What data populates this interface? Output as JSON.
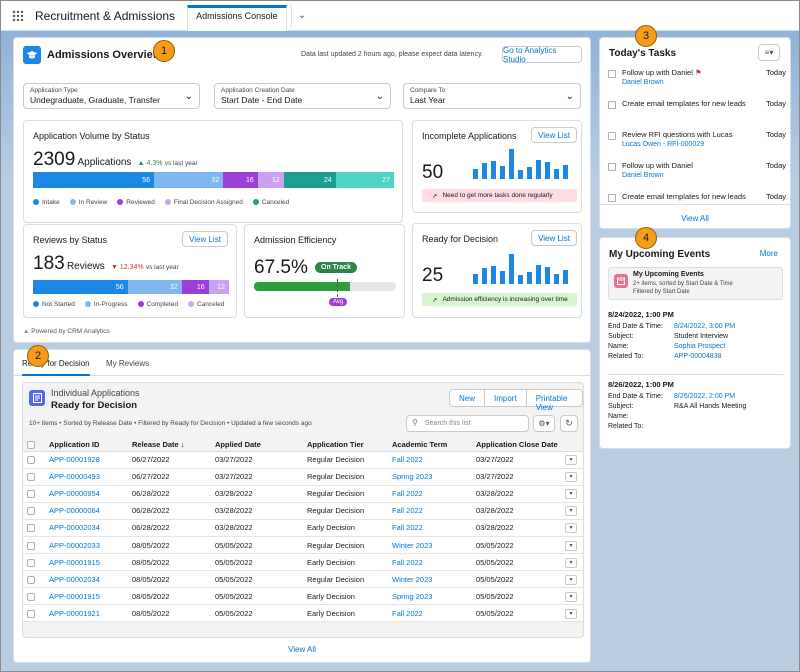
{
  "app": {
    "name": "Recruitment & Admissions",
    "tab": "Admissions Console"
  },
  "callouts": [
    "1",
    "2",
    "3",
    "4"
  ],
  "overview": {
    "title": "Admissions Overview",
    "latency_note": "Data last updated 2 hours ago, please expect data latency.",
    "analytics_button": "Go to Analytics Studio",
    "filters": [
      {
        "label": "Application Type",
        "value": "Undegraduate, Graduate, Transfer"
      },
      {
        "label": "Application Creation Date",
        "value": "Start Date - End Date"
      },
      {
        "label": "Compare To",
        "value": "Last Year"
      }
    ],
    "powered_by": "Powered by CRM Analytics"
  },
  "volume": {
    "title": "Application Volume by Status",
    "count": "2309",
    "unit": "Applications",
    "trend": "▲ 4.3%",
    "trend_suffix": "vs last year",
    "segments": [
      {
        "name": "Intake",
        "value": 56,
        "color": "#1b88e4"
      },
      {
        "name": "In Review",
        "value": 32,
        "color": "#7fb8ef"
      },
      {
        "name": "Reviewed",
        "value": 16,
        "color": "#9b3fd6"
      },
      {
        "name": "Final Decision Assigned",
        "value": 12,
        "color": "#c9a3f0"
      },
      {
        "name": "Canceled",
        "value": 24,
        "color": "#1e9e8f"
      },
      {
        "name": "",
        "value": 27,
        "color": "#4fd3c3"
      }
    ]
  },
  "incomplete": {
    "title": "Incomplete Applications",
    "button": "View List",
    "count": "50",
    "bars": [
      0.35,
      0.55,
      0.6,
      0.45,
      1.0,
      0.3,
      0.4,
      0.62,
      0.58,
      0.35,
      0.48
    ],
    "alert": "Need to get more tasks done regularly"
  },
  "reviews": {
    "title": "Reviews by Status",
    "button": "View List",
    "count": "183",
    "unit": "Reviews",
    "trend": "▼ 12.34%",
    "trend_suffix": "vs last year",
    "segments": [
      {
        "name": "Not Started",
        "value": 56,
        "color": "#1b88e4"
      },
      {
        "name": "In-Progress",
        "value": 32,
        "color": "#7fb8ef"
      },
      {
        "name": "Completed",
        "value": 16,
        "color": "#9b3fd6"
      },
      {
        "name": "Canceled",
        "value": 12,
        "color": "#c9a3f0"
      }
    ]
  },
  "efficiency": {
    "title": "Admission Efficiency",
    "value": "67.5%",
    "fill": 0.675,
    "status": "On Track",
    "avg_label": "Avg"
  },
  "ready": {
    "title": "Ready for Decision",
    "button": "View List",
    "count": "25",
    "bars": [
      0.35,
      0.55,
      0.6,
      0.45,
      1.0,
      0.3,
      0.4,
      0.62,
      0.58,
      0.35,
      0.48
    ],
    "alert": "Admission efficiency is increasing over time"
  },
  "list": {
    "tabs": [
      "Ready for Decision",
      "My Reviews"
    ],
    "object": "Individual Applications",
    "view": "Ready for Decision",
    "buttons": [
      "New",
      "Import",
      "Printable View"
    ],
    "meta": "10+ items • Sorted by Release Date • Filtered by Ready for Decision • Updated a few seconds ago",
    "search_placeholder": "Search this list",
    "columns": [
      "Application ID",
      "Release Date ↓",
      "Applied Date",
      "Application Tier",
      "Academic Term",
      "Application Close Date"
    ],
    "rows": [
      [
        "APP-00001928",
        "06/27/2022",
        "03/27/2022",
        "Regular Decision",
        "Fall 2022",
        "03/27/2022"
      ],
      [
        "APP-00000493",
        "06/27/2022",
        "03/27/2022",
        "Regular Decision",
        "Spring 2023",
        "03/27/2022"
      ],
      [
        "APP-00000954",
        "06/28/2022",
        "03/28/2022",
        "Regular Decision",
        "Fall 2022",
        "03/28/2022"
      ],
      [
        "APP-00000064",
        "06/28/2022",
        "03/28/2022",
        "Regular Decision",
        "Fall 2022",
        "03/28/2022"
      ],
      [
        "APP-00002034",
        "06/28/2022",
        "03/28/2022",
        "Early Decision",
        "Fall 2022",
        "03/28/2022"
      ],
      [
        "APP-00002033",
        "08/05/2022",
        "05/05/2022",
        "Regular Decision",
        "Winter 2023",
        "05/05/2022"
      ],
      [
        "APP-00001915",
        "08/05/2022",
        "05/05/2022",
        "Early Decision",
        "Fall 2022",
        "05/05/2022"
      ],
      [
        "APP-00002034",
        "08/05/2022",
        "05/05/2022",
        "Regular Decision",
        "Winter 2023",
        "05/05/2022"
      ],
      [
        "APP-00001915",
        "08/05/2022",
        "05/05/2022",
        "Early Decision",
        "Spring 2023",
        "05/05/2022"
      ],
      [
        "APP-00001921",
        "08/05/2022",
        "05/05/2022",
        "Early Decision",
        "Fall 2022",
        "05/05/2022"
      ]
    ],
    "view_all": "View All"
  },
  "tasks": {
    "title": "Today's Tasks",
    "items": [
      {
        "text": "Follow up with Daniel",
        "sub": "Daniel Brown",
        "date": "Today",
        "flag": true
      },
      {
        "text": "Create email templates for new leads",
        "sub": "",
        "date": "Today",
        "flag": false
      },
      {
        "text": "Review RFI questions with Lucas",
        "sub": "Lucas Owen - RFI-000029",
        "date": "Today",
        "flag": false
      },
      {
        "text": "Follow up with Daniel",
        "sub": "Daniel Brown",
        "date": "Today",
        "flag": false
      },
      {
        "text": "Create email templates for new leads",
        "sub": "",
        "date": "Today",
        "flag": false
      }
    ],
    "view_all": "View All"
  },
  "events": {
    "title": "My Upcoming Events",
    "more": "More",
    "list_title": "My Upcoming Events",
    "list_meta1": "2+ items, sorted by Start Date & Time",
    "list_meta2": "Filtered by Start Date",
    "items": [
      {
        "header": "8/24/2022, 1:00 PM",
        "end": "8/24/2022, 3:00 PM",
        "subject": "Student Interview",
        "name": "Sophia Prospect",
        "related": "APP-00004838"
      },
      {
        "header": "8/26/2022, 1:00 PM",
        "end": "8/26/2022, 2:00 PM",
        "subject": "R&A All Hands Meeting",
        "name": "",
        "related": ""
      }
    ],
    "labels": {
      "end": "End Date & Time:",
      "subject": "Subject:",
      "name": "Name:",
      "related": "Related To:"
    }
  }
}
